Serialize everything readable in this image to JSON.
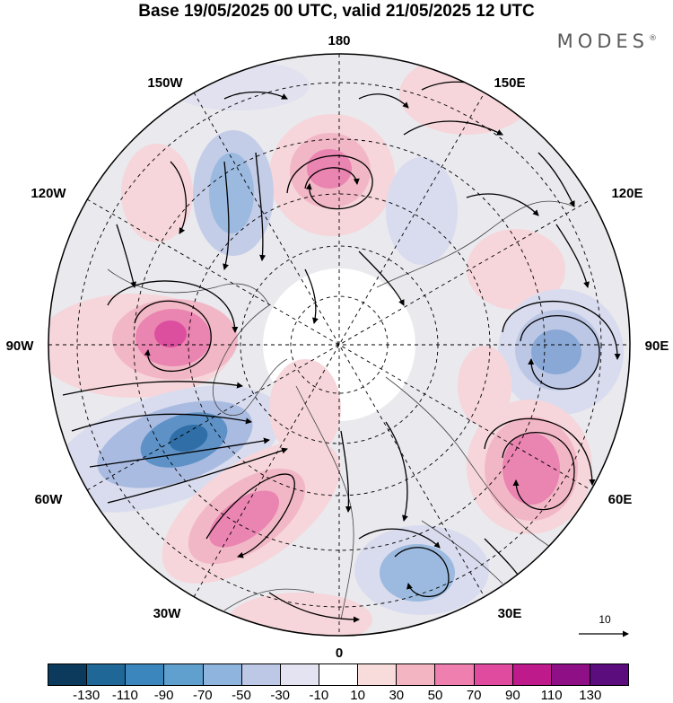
{
  "title": "Base 19/05/2025 00 UTC, valid 21/05/2025 12 UTC",
  "brand": "MODES",
  "brand_mark": "®",
  "longitude_labels": {
    "north": "180",
    "south": "0",
    "west": "90W",
    "east": "90E",
    "nw_upper": "150W",
    "nw_lower": "120W",
    "ne_upper": "150E",
    "ne_lower": "120E",
    "sw_upper": "60W",
    "sw_lower": "30W",
    "se_upper": "60E",
    "se_lower": "30E"
  },
  "reference_vector_label": "10",
  "colorbar": {
    "colors": [
      "#0b3a5c",
      "#1f6796",
      "#3a86bd",
      "#5fa0cf",
      "#8fb5df",
      "#bcc8e6",
      "#e3e3f1",
      "#ffffff",
      "#f8dcdc",
      "#f4b5c2",
      "#ee7fae",
      "#e04a9f",
      "#be1a8b",
      "#8f0f86",
      "#5b0c7d"
    ],
    "tick_labels": [
      "-130",
      "-110",
      "-90",
      "-70",
      "-50",
      "-30",
      "-10",
      "10",
      "30",
      "50",
      "70",
      "90",
      "110",
      "130"
    ]
  }
}
